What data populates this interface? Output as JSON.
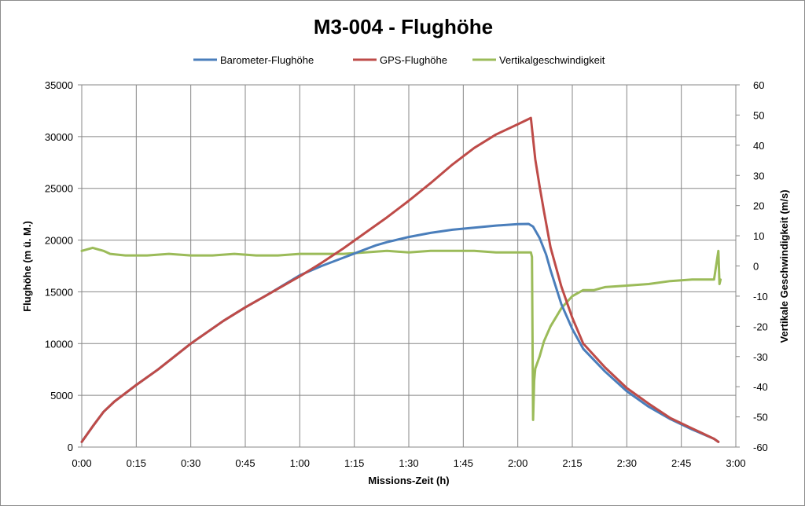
{
  "chart_data": {
    "type": "line",
    "title": "M3-004 - Flughöhe",
    "xlabel": "Missions-Zeit  (h)",
    "ylabel": "Flughöhe (m ü. M.)",
    "y2label": "Vertikale Geschwindigkeit (m/s)",
    "xlim_hours": [
      0,
      3
    ],
    "ylim": [
      0,
      35000
    ],
    "y2lim": [
      -60,
      60
    ],
    "x_tick_labels": [
      "0:00",
      "0:15",
      "0:30",
      "0:45",
      "1:00",
      "1:15",
      "1:30",
      "1:45",
      "2:00",
      "2:15",
      "2:30",
      "2:45",
      "3:00"
    ],
    "y_tick_labels": [
      "0",
      "5000",
      "10000",
      "15000",
      "20000",
      "25000",
      "30000",
      "35000"
    ],
    "y2_tick_labels": [
      "-60",
      "-50",
      "-40",
      "-30",
      "-20",
      "-10",
      "0",
      "10",
      "20",
      "30",
      "40",
      "50",
      "60"
    ],
    "grid": true,
    "legend_position": "top",
    "series": [
      {
        "name": "Barometer-Flughöhe",
        "axis": "left",
        "color": "#4a7ebb",
        "x": [
          0,
          0.05,
          0.1,
          0.15,
          0.25,
          0.35,
          0.5,
          0.65,
          0.75,
          0.85,
          1.0,
          1.1,
          1.2,
          1.25,
          1.3,
          1.35,
          1.4,
          1.5,
          1.6,
          1.7,
          1.8,
          1.9,
          2.0,
          2.05,
          2.07,
          2.1,
          2.13,
          2.15,
          2.2,
          2.25,
          2.3,
          2.4,
          2.5,
          2.6,
          2.7,
          2.8,
          2.9,
          2.92
        ],
        "y": [
          500,
          2000,
          3400,
          4400,
          6000,
          7500,
          10000,
          12200,
          13500,
          14700,
          16600,
          17500,
          18300,
          18700,
          19100,
          19500,
          19800,
          20300,
          20700,
          21000,
          21200,
          21400,
          21550,
          21560,
          21300,
          20200,
          18600,
          17100,
          13800,
          11400,
          9500,
          7300,
          5400,
          3900,
          2700,
          1700,
          800,
          500
        ]
      },
      {
        "name": "GPS-Flughöhe",
        "axis": "left",
        "color": "#be4b48",
        "x": [
          0,
          0.05,
          0.1,
          0.15,
          0.25,
          0.35,
          0.5,
          0.65,
          0.75,
          0.85,
          1.0,
          1.1,
          1.2,
          1.3,
          1.4,
          1.5,
          1.6,
          1.7,
          1.8,
          1.9,
          2.0,
          2.06,
          2.08,
          2.1,
          2.12,
          2.15,
          2.2,
          2.25,
          2.3,
          2.4,
          2.5,
          2.6,
          2.7,
          2.8,
          2.9,
          2.92
        ],
        "y": [
          500,
          2000,
          3400,
          4400,
          6000,
          7500,
          10000,
          12200,
          13500,
          14700,
          16500,
          17800,
          19200,
          20700,
          22200,
          23800,
          25500,
          27300,
          28900,
          30200,
          31200,
          31800,
          27800,
          25200,
          22800,
          19300,
          15500,
          12500,
          10000,
          7700,
          5700,
          4200,
          2800,
          1800,
          800,
          500
        ]
      },
      {
        "name": "Vertikalgeschwindigkeit",
        "axis": "right",
        "color": "#9bbb59",
        "x": [
          0,
          0.05,
          0.1,
          0.13,
          0.2,
          0.3,
          0.4,
          0.5,
          0.6,
          0.7,
          0.8,
          0.9,
          1.0,
          1.1,
          1.2,
          1.3,
          1.4,
          1.5,
          1.6,
          1.7,
          1.8,
          1.9,
          2.0,
          2.06,
          2.065,
          2.07,
          2.075,
          2.08,
          2.1,
          2.12,
          2.15,
          2.2,
          2.25,
          2.3,
          2.35,
          2.4,
          2.5,
          2.6,
          2.7,
          2.8,
          2.9,
          2.92,
          2.925,
          2.93
        ],
        "y": [
          5,
          6,
          5,
          4,
          3.5,
          3.5,
          4,
          3.5,
          3.5,
          4,
          3.5,
          3.5,
          4,
          4,
          4,
          4.5,
          5,
          4.5,
          5,
          5,
          5,
          4.5,
          4.5,
          4.5,
          3,
          -51,
          -38,
          -34,
          -30,
          -25,
          -20,
          -14,
          -10,
          -8,
          -8,
          -7,
          -6.5,
          -6,
          -5,
          -4.5,
          -4.5,
          5,
          -6,
          -4.5
        ]
      }
    ]
  }
}
